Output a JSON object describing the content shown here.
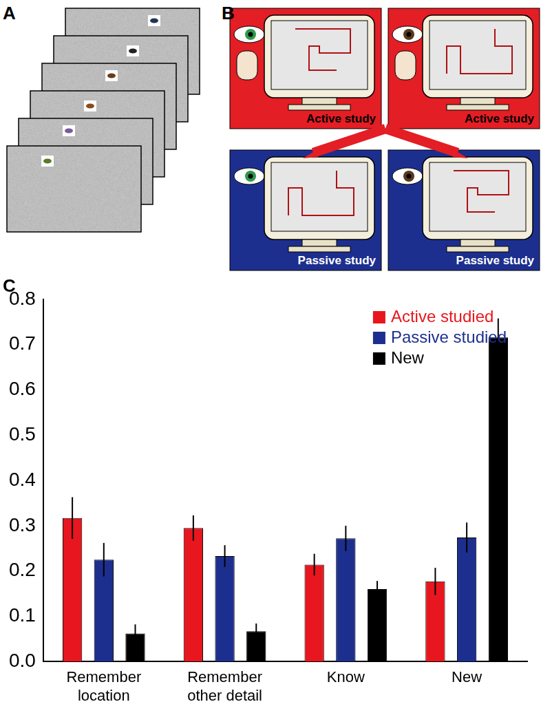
{
  "figure": {
    "panel_labels": [
      "A",
      "B",
      "C"
    ],
    "study_boxes": [
      "Active study",
      "Active study",
      "Passive study",
      "Passive study"
    ]
  },
  "chart_data": {
    "type": "bar",
    "categories": [
      [
        "Remember",
        "location"
      ],
      [
        "Remember",
        "other detail"
      ],
      "Know",
      "New"
    ],
    "series": [
      {
        "name": "Active studied",
        "color": "#e8161e",
        "values": [
          0.317,
          0.295,
          0.214,
          0.177
        ],
        "errors": [
          0.046,
          0.028,
          0.024,
          0.03
        ]
      },
      {
        "name": "Passive studied",
        "color": "#1d2f8e",
        "values": [
          0.225,
          0.233,
          0.272,
          0.274
        ],
        "errors": [
          0.037,
          0.024,
          0.028,
          0.033
        ]
      },
      {
        "name": "New",
        "color": "#000000",
        "values": [
          0.062,
          0.067,
          0.16,
          0.716
        ],
        "errors": [
          0.02,
          0.017,
          0.018,
          0.042
        ]
      }
    ],
    "ylim": [
      0,
      0.8
    ],
    "yticks": [
      {
        "value": 0,
        "label": "0.0"
      },
      0.1,
      0.2,
      0.3,
      0.4,
      0.5,
      0.6,
      0.7,
      0.8
    ],
    "grid": false,
    "legend": "upper right"
  }
}
